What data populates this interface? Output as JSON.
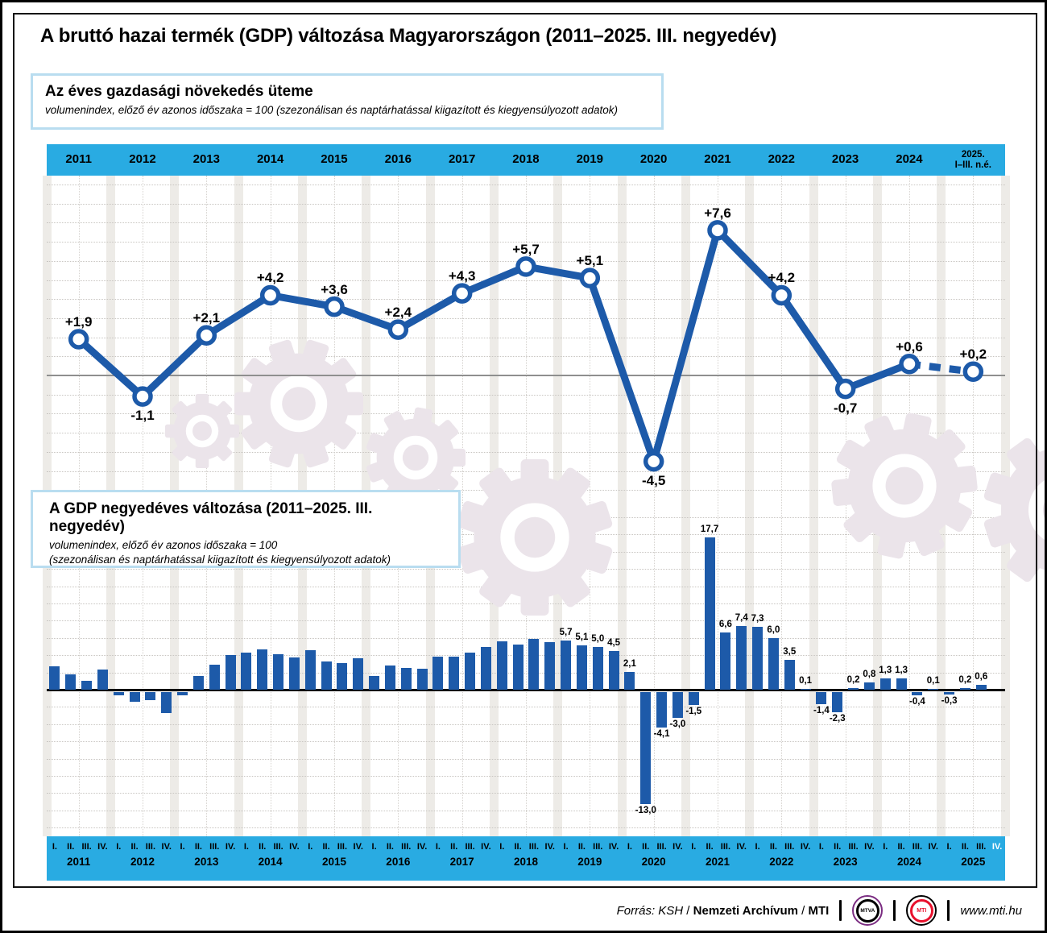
{
  "page": {
    "title": "A bruttó hazai termék (GDP) változása Magyarországon (2011–2025. III. negyedév)"
  },
  "colors": {
    "accent_cyan": "#29abe2",
    "data_blue": "#1d5aa9",
    "stripe_gray": "#edebe7",
    "gear_watermark": "#ebe4ea",
    "logo_purple": "#7b2d82",
    "logo_red": "#e8112d"
  },
  "chart_data": [
    {
      "type": "line",
      "title": "Az éves gazdasági növekedés üteme",
      "subtitle": "volumenindex, előző év azonos időszaka = 100 (szezonálisan és naptárhatással kiigazított és kiegyensúlyozott adatok)",
      "categories": [
        "2011",
        "2012",
        "2013",
        "2014",
        "2015",
        "2016",
        "2017",
        "2018",
        "2019",
        "2020",
        "2021",
        "2022",
        "2023",
        "2024",
        "2025. I–III. n.é."
      ],
      "last_category_lines": [
        "2025.",
        "I–III. n.é."
      ],
      "values": [
        1.9,
        -1.1,
        2.1,
        4.2,
        3.6,
        2.4,
        4.3,
        5.7,
        5.1,
        -4.5,
        7.6,
        4.2,
        -0.7,
        0.6,
        0.2
      ],
      "point_labels": [
        "+1,9",
        "-1,1",
        "+2,1",
        "+4,2",
        "+3,6",
        "+2,4",
        "+4,3",
        "+5,7",
        "+5,1",
        "-4,5",
        "+7,6",
        "+4,2",
        "-0,7",
        "+0,6",
        "+0,2"
      ],
      "dashed_last_segment": true,
      "ylim": [
        -6,
        10
      ],
      "grid_interval": 1,
      "grid_style": "dotted horizontal, zero axis solid gray",
      "legend": "none"
    },
    {
      "type": "bar",
      "title": "A GDP negyedéves változása (2011–2025. III. negyedév)",
      "subtitle_line1": "volumenindex, előző év azonos időszaka = 100",
      "subtitle_line2": "(szezonálisan és naptárhatással kiigazított és kiegyensúlyozott adatok)",
      "years": [
        "2011",
        "2012",
        "2013",
        "2014",
        "2015",
        "2016",
        "2017",
        "2018",
        "2019",
        "2020",
        "2021",
        "2022",
        "2023",
        "2024",
        "2025"
      ],
      "quarter_labels": [
        "I.",
        "II.",
        "III.",
        "IV."
      ],
      "values": [
        2.7,
        1.8,
        1.0,
        2.3,
        -0.4,
        -1.1,
        -0.9,
        -2.4,
        -0.4,
        1.6,
        2.9,
        4.0,
        4.3,
        4.7,
        4.1,
        3.7,
        4.6,
        3.3,
        3.1,
        3.6,
        1.6,
        2.8,
        2.5,
        2.4,
        3.8,
        3.8,
        4.3,
        5.0,
        5.6,
        5.2,
        5.9,
        5.5,
        5.7,
        5.1,
        5.0,
        4.5,
        2.1,
        -13.0,
        -4.1,
        -3.0,
        -1.5,
        17.7,
        6.6,
        7.4,
        7.3,
        6.0,
        3.5,
        0.1,
        -1.4,
        -2.3,
        0.2,
        0.8,
        1.3,
        1.3,
        -0.4,
        0.1,
        -0.3,
        0.2,
        0.6
      ],
      "bar_labels": [
        null,
        null,
        null,
        null,
        null,
        null,
        null,
        null,
        null,
        null,
        null,
        null,
        null,
        null,
        null,
        null,
        null,
        null,
        null,
        null,
        null,
        null,
        null,
        null,
        null,
        null,
        null,
        null,
        null,
        null,
        null,
        null,
        "5,7",
        "5,1",
        "5,0",
        "4,5",
        "2,1",
        "-13,0",
        "-4,1",
        "-3,0",
        "-1,5",
        "17,7",
        "6,6",
        "7,4",
        "7,3",
        "6,0",
        "3,5",
        "0,1",
        "-1,4",
        "-2,3",
        "0,2",
        "0,8",
        "1,3",
        "1,3",
        "-0,4",
        "0,1",
        "-0,3",
        "0,2",
        "0,6"
      ],
      "pending_quarter": {
        "year": "2025",
        "label": "IV.",
        "rendered": "white text, no bar"
      },
      "ylim": [
        -16,
        20
      ],
      "grid_interval": 2,
      "grid_style": "dotted horizontal, zero axis solid black",
      "legend": "none"
    }
  ],
  "footer": {
    "source_prefix": "Forrás: KSH",
    "sep1": " / ",
    "source_archive": "Nemzeti Archívum",
    "sep2": " / ",
    "source_mti": "MTI",
    "mtva_logo": "MTVA",
    "mti_logo": "MTI",
    "website": "www.mti.hu"
  }
}
